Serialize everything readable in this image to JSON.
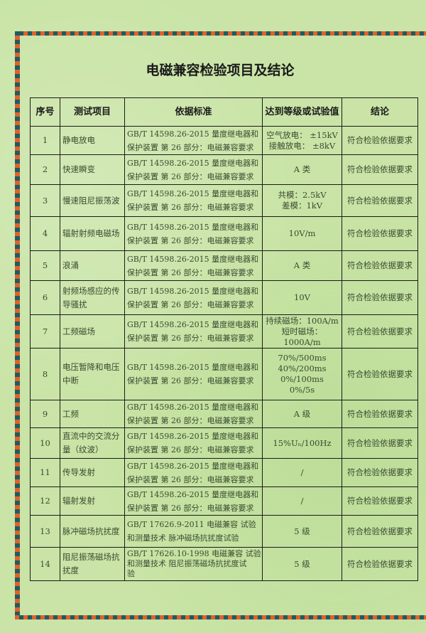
{
  "title": "电磁兼容检验项目及结论",
  "table": {
    "headers": [
      "序号",
      "测试项目",
      "依据标准",
      "达到等级或试验值",
      "结论"
    ],
    "rows": [
      {
        "no": "1",
        "item": "静电放电",
        "standard": [
          "GB/T 14598.26-2015 量度继电器和",
          "保护装置 第 26 部分：电磁兼容要求"
        ],
        "value": "空气放电：  ±15kV\n接触放电：  ±8kV",
        "result": "符合检验依据要求"
      },
      {
        "no": "2",
        "item": "快速瞬变",
        "standard": [
          "GB/T 14598.26-2015 量度继电器和",
          "保护装置 第 26 部分：电磁兼容要求"
        ],
        "value": "A 类",
        "result": "符合检验依据要求"
      },
      {
        "no": "3",
        "item": "慢速阻尼振荡波",
        "standard": [
          "GB/T 14598.26-2015 量度继电器和",
          "保护装置 第 26 部分：电磁兼容要求"
        ],
        "value": "共模：2.5kV\n差模：1kV",
        "result": "符合检验依据要求"
      },
      {
        "no": "4",
        "item": "辐射射频电磁场",
        "standard": [
          "GB/T 14598.26-2015 量度继电器和",
          "保护装置 第 26 部分：电磁兼容要求"
        ],
        "value": "10V/m",
        "result": "符合检验依据要求"
      },
      {
        "no": "5",
        "item": "浪涌",
        "standard": [
          "GB/T 14598.26-2015 量度继电器和",
          "保护装置 第 26 部分：电磁兼容要求"
        ],
        "value": "A 类",
        "result": "符合检验依据要求"
      },
      {
        "no": "6",
        "item": "射频场感应的传导骚扰",
        "standard": [
          "GB/T 14598.26-2015 量度继电器和",
          "保护装置 第 26 部分：电磁兼容要求"
        ],
        "value": "10V",
        "result": "符合检验依据要求"
      },
      {
        "no": "7",
        "item": "工频磁场",
        "standard": [
          "GB/T 14598.26-2015 量度继电器和",
          "保护装置 第 26 部分：电磁兼容要求"
        ],
        "value": "持续磁场：100A/m\n短时磁场：1000A/m",
        "result": "符合检验依据要求"
      },
      {
        "no": "8",
        "item": "电压暂降和电压中断",
        "standard": [
          "GB/T 14598.26-2015 量度继电器和",
          "保护装置 第 26 部分：电磁兼容要求"
        ],
        "value": "70%/500ms\n40%/200ms\n0%/100ms\n0%/5s",
        "result": "符合检验依据要求"
      },
      {
        "no": "9",
        "item": "工频",
        "standard": [
          "GB/T 14598.26-2015 量度继电器和",
          "保护装置 第 26 部分：电磁兼容要求"
        ],
        "value": "A 级",
        "result": "符合检验依据要求"
      },
      {
        "no": "10",
        "item": "直流中的交流分量（纹波）",
        "standard": [
          "GB/T 14598.26-2015 量度继电器和",
          "保护装置 第 26 部分：电磁兼容要求"
        ],
        "value": "15%Uₙ/100Hz",
        "result": "符合检验依据要求"
      },
      {
        "no": "11",
        "item": "传导发射",
        "standard": [
          "GB/T 14598.26-2015 量度继电器和",
          "保护装置 第 26 部分：电磁兼容要求"
        ],
        "value": "/",
        "result": "符合检验依据要求"
      },
      {
        "no": "12",
        "item": "辐射发射",
        "standard": [
          "GB/T 14598.26-2015 量度继电器和",
          "保护装置 第 26 部分：电磁兼容要求"
        ],
        "value": "/",
        "result": "符合检验依据要求"
      },
      {
        "no": "13",
        "item": "脉冲磁场抗扰度",
        "standard": [
          "GB/T 17626.9-2011 电磁兼容 试验",
          "和测量技术 脉冲磁场抗扰度试验"
        ],
        "value": "5 级",
        "result": "符合检验依据要求"
      },
      {
        "no": "14",
        "item": "阻尼振荡磁场抗扰度",
        "standard": [
          "GB/T 17626.10-1998 电磁兼容 试验",
          "和测量技术 阻尼振荡磁场抗扰度试",
          "验"
        ],
        "value": "5 级",
        "result": "符合检验依据要求"
      }
    ]
  },
  "colors": {
    "background": "#c9e4a6",
    "frame_orange": "#e0622a",
    "frame_teal": "#1f5b63"
  }
}
